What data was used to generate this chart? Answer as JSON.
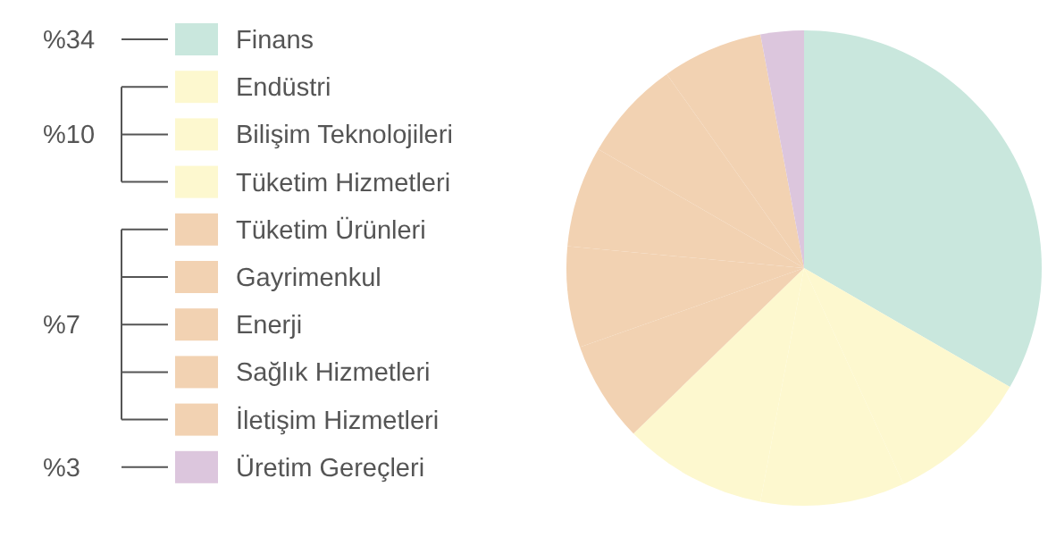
{
  "chart_data": {
    "type": "pie",
    "categories": [
      "Finans",
      "Endüstri",
      "Bilişim Teknolojileri",
      "Tüketim Hizmetleri",
      "Tüketim Ürünleri",
      "Gayrimenkul",
      "Enerji",
      "Sağlık Hizmetleri",
      "İletişim Hizmetleri",
      "Üretim Gereçleri"
    ],
    "values": [
      34,
      10,
      10,
      10,
      7,
      7,
      7,
      7,
      7,
      3
    ],
    "value_labels": [
      "%34",
      null,
      "%10",
      null,
      null,
      null,
      "%7",
      null,
      null,
      "%3"
    ],
    "colors": [
      "#c9e7dd",
      "#fdf8cf",
      "#fdf8cf",
      "#fdf8cf",
      "#f2d2b2",
      "#f2d2b2",
      "#f2d2b2",
      "#f2d2b2",
      "#f2d2b2",
      "#dcc6dd"
    ],
    "legend": "left"
  }
}
